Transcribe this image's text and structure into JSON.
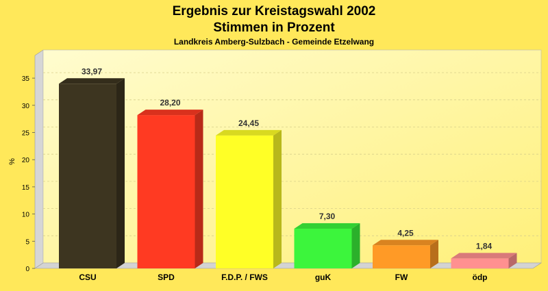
{
  "chart_data": {
    "type": "bar",
    "title": "Ergebnis zur Kreistagswahl 2002",
    "subtitle": "Stimmen in Prozent",
    "subtitle2": "Landkreis Amberg-Sulzbach - Gemeinde Etzelwang",
    "ylabel": "%",
    "xlabel": "",
    "ylim": [
      0,
      37.5
    ],
    "yticks": [
      "0",
      "5",
      "10",
      "15",
      "20",
      "25",
      "30",
      "35"
    ],
    "categories": [
      "CSU",
      "SPD",
      "F.D.P. / FWS",
      "guK",
      "FW",
      "ödp"
    ],
    "values": [
      33.97,
      28.2,
      24.45,
      7.3,
      4.25,
      1.84
    ],
    "value_labels": [
      "33,97",
      "28,20",
      "24,45",
      "7,30",
      "4,25",
      "1,84"
    ],
    "colors": [
      "#3d3520",
      "#ff3a22",
      "#ffff26",
      "#3cf53c",
      "#ff9a26",
      "#ff9090"
    ],
    "grid": true,
    "legend": "none"
  }
}
